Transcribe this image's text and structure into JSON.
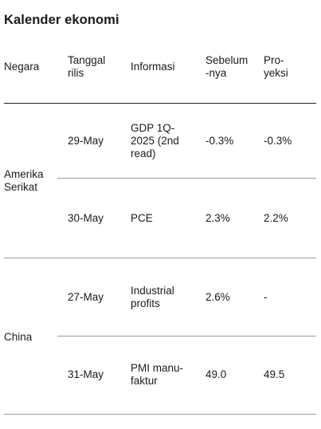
{
  "title": "Kalender ekonomi",
  "columns": [
    "Negara",
    "Tanggal\nrilis",
    "Informasi",
    "Sebelum\n-nya",
    "Pro-\nyeksi"
  ],
  "groups": [
    {
      "country": "Amerika\nSerikat",
      "rows": [
        {
          "date": "29-May",
          "info": "GDP 1Q-\n2025 (2nd\nread)",
          "previous": "-0.3%",
          "forecast": "-0.3%"
        },
        {
          "date": "30-May",
          "info": "PCE",
          "previous": "2.3%",
          "forecast": "2.2%"
        }
      ]
    },
    {
      "country": "China",
      "rows": [
        {
          "date": "27-May",
          "info": "Industrial\nprofits",
          "previous": "2.6%",
          "forecast": "-"
        },
        {
          "date": "31-May",
          "info": "PMI manu-\nfaktur",
          "previous": "49.0",
          "forecast": "49.5"
        }
      ]
    }
  ]
}
